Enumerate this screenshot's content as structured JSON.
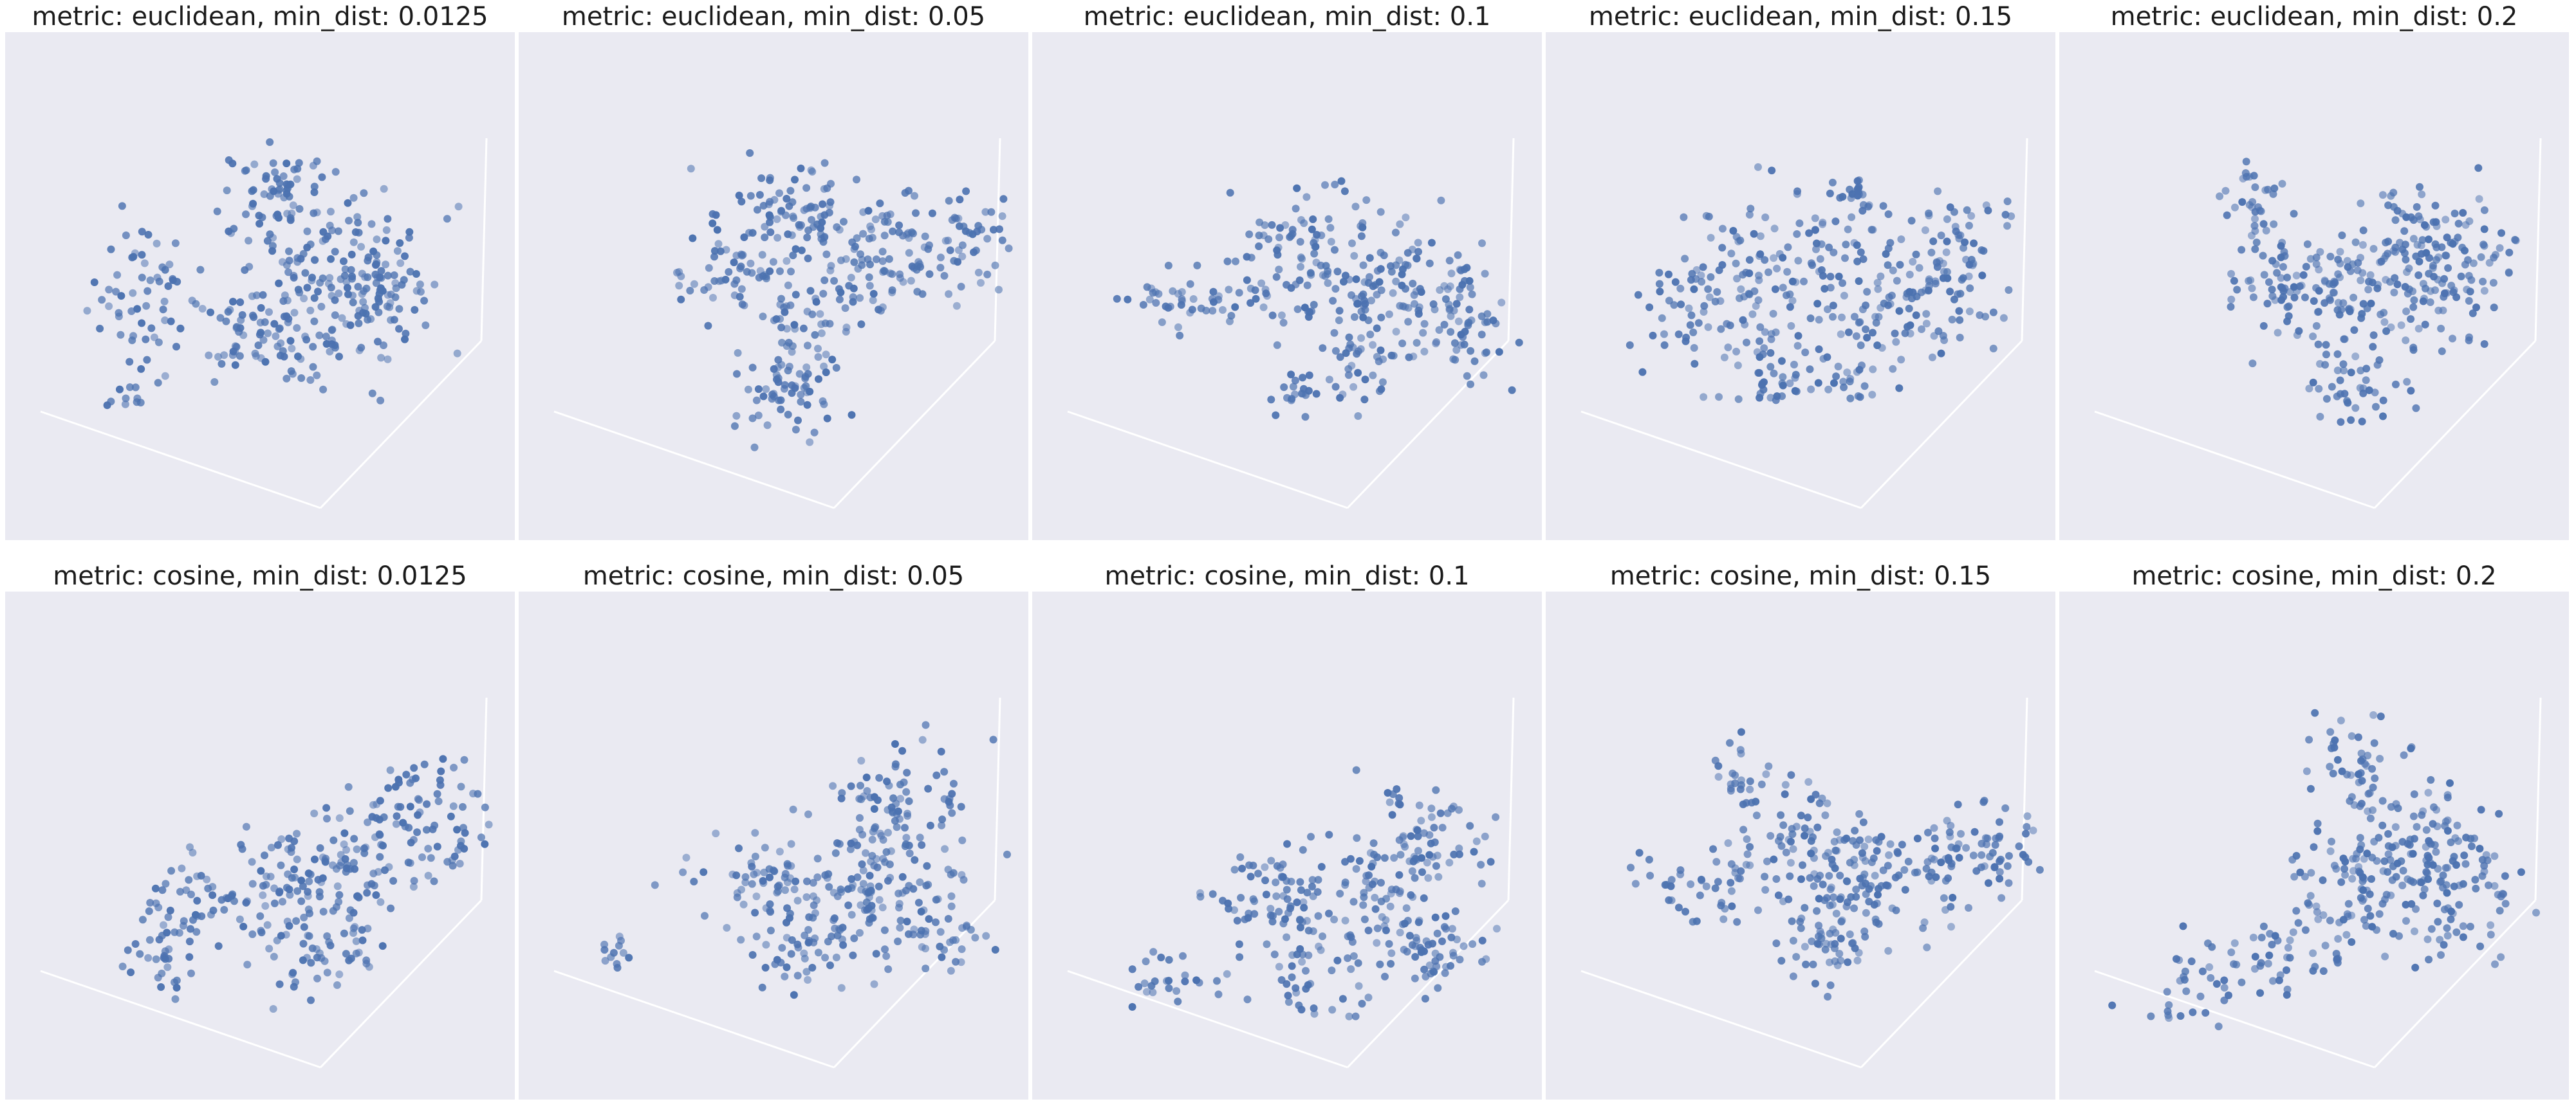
{
  "figure": {
    "type": "scatter3d-grid",
    "rows": [
      "euclidean",
      "cosine"
    ],
    "columns": [
      "0.0125",
      "0.05",
      "0.1",
      "0.15",
      "0.2"
    ]
  },
  "style": {
    "panel_background": "#eaeaf2",
    "point_color": "#4c72b0",
    "axis_line_color": "#ffffff",
    "title_color": "#1a1a1a"
  },
  "chart_data": [
    {
      "type": "scatter",
      "title": "metric: euclidean, min_dist: 0.0125",
      "metric": "euclidean",
      "min_dist": 0.0125,
      "grid": false,
      "legend": "none"
    },
    {
      "type": "scatter",
      "title": "metric: euclidean, min_dist: 0.05",
      "metric": "euclidean",
      "min_dist": 0.05,
      "grid": false,
      "legend": "none"
    },
    {
      "type": "scatter",
      "title": "metric: euclidean, min_dist: 0.1",
      "metric": "euclidean",
      "min_dist": 0.1,
      "grid": false,
      "legend": "none"
    },
    {
      "type": "scatter",
      "title": "metric: euclidean, min_dist: 0.15",
      "metric": "euclidean",
      "min_dist": 0.15,
      "grid": false,
      "legend": "none"
    },
    {
      "type": "scatter",
      "title": "metric: euclidean, min_dist: 0.2",
      "metric": "euclidean",
      "min_dist": 0.2,
      "grid": false,
      "legend": "none"
    },
    {
      "type": "scatter",
      "title": "metric: cosine, min_dist: 0.0125",
      "metric": "cosine",
      "min_dist": 0.0125,
      "grid": false,
      "legend": "none"
    },
    {
      "type": "scatter",
      "title": "metric: cosine, min_dist: 0.05",
      "metric": "cosine",
      "min_dist": 0.05,
      "grid": false,
      "legend": "none"
    },
    {
      "type": "scatter",
      "title": "metric: cosine, min_dist: 0.1",
      "metric": "cosine",
      "min_dist": 0.1,
      "grid": false,
      "legend": "none"
    },
    {
      "type": "scatter",
      "title": "metric: cosine, min_dist: 0.15",
      "metric": "cosine",
      "min_dist": 0.15,
      "grid": false,
      "legend": "none"
    },
    {
      "type": "scatter",
      "title": "metric: cosine, min_dist: 0.2",
      "metric": "cosine",
      "min_dist": 0.2,
      "grid": false,
      "legend": "none"
    }
  ]
}
